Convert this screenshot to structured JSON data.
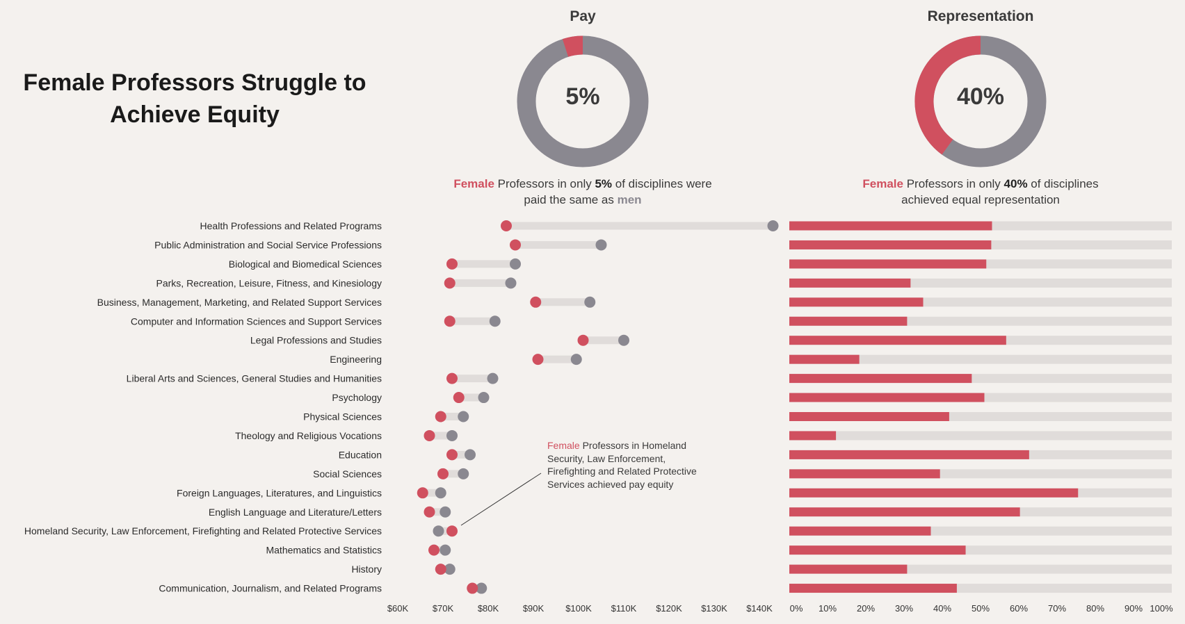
{
  "title_line1": "Female Professors Struggle to",
  "title_line2": "Achieve Equity",
  "colors": {
    "female": "#d0505f",
    "male": "#8a8890",
    "track": "#e0dcda",
    "background": "#f4f1ee"
  },
  "pay_donut": {
    "title": "Pay",
    "percent": 5,
    "label": "5%",
    "caption_female": "Female",
    "caption_part1": " Professors in only ",
    "caption_pct": "5%",
    "caption_part2": " of disciplines were",
    "caption_line2": "paid the same as ",
    "caption_male": "men"
  },
  "rep_donut": {
    "title": "Representation",
    "percent": 40,
    "label": "40%",
    "caption_female": "Female",
    "caption_part1": " Professors in only ",
    "caption_pct": "40%",
    "caption_part2": " of disciplines",
    "caption_line2": "achieved equal representation"
  },
  "annotation": {
    "female": "Female",
    "text": " Professors in Homeland Security, Law Enforcement, Firefighting and Related Protective Services achieved pay equity"
  },
  "chart_data": [
    {
      "type": "dumbbell",
      "title": "Pay",
      "x_unit": "USD",
      "xlim": [
        60000,
        140000
      ],
      "x_ticks": [
        "$60K",
        "$70K",
        "$80K",
        "$90K",
        "$100K",
        "$110K",
        "$120K",
        "$130K",
        "$140K"
      ],
      "categories": [
        "Health Professions and Related Programs",
        "Public Administration and Social Service Professions",
        "Biological and Biomedical Sciences",
        "Parks, Recreation, Leisure, Fitness, and Kinesiology",
        "Business, Management, Marketing, and Related Support Services",
        "Computer and Information Sciences and Support Services",
        "Legal Professions and Studies",
        "Engineering",
        "Liberal Arts and Sciences, General Studies and Humanities",
        "Psychology",
        "Physical Sciences",
        "Theology and Religious Vocations",
        "Education",
        "Social Sciences",
        "Foreign Languages, Literatures, and Linguistics",
        "English Language and Literature/Letters",
        "Homeland Security, Law Enforcement, Firefighting and Related Protective Services",
        "Mathematics and Statistics",
        "History",
        "Communication, Journalism, and Related Programs"
      ],
      "series": [
        {
          "name": "Female",
          "values": [
            84000,
            86000,
            72000,
            71500,
            90500,
            71500,
            101000,
            91000,
            72000,
            73500,
            69500,
            67000,
            72000,
            70000,
            65500,
            67000,
            72000,
            68000,
            69500,
            76500
          ]
        },
        {
          "name": "Male",
          "values": [
            143000,
            105000,
            86000,
            85000,
            102500,
            81500,
            110000,
            99500,
            81000,
            79000,
            74500,
            72000,
            76000,
            74500,
            69500,
            70500,
            69000,
            70500,
            71500,
            78500
          ]
        }
      ]
    },
    {
      "type": "bar",
      "orientation": "horizontal",
      "title": "Representation",
      "x_unit": "percent female",
      "xlim": [
        0,
        100
      ],
      "x_ticks": [
        "0%",
        "10%",
        "20%",
        "30%",
        "40%",
        "50%",
        "60%",
        "70%",
        "80%",
        "90%",
        "100%"
      ],
      "values": [
        53,
        52.8,
        51.5,
        31.7,
        35,
        30.8,
        56.7,
        18.3,
        47.7,
        51,
        41.8,
        12.2,
        62.7,
        39.4,
        75.5,
        60.3,
        37,
        46.1,
        30.8,
        43.8
      ]
    }
  ]
}
